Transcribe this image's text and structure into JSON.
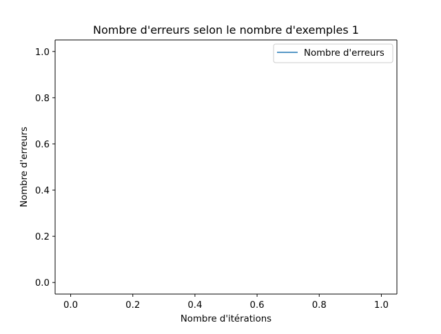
{
  "chart_data": {
    "type": "line",
    "title": "Nombre d'erreurs selon le nombre d'exemples 1",
    "xlabel": "Nombre d'itérations",
    "ylabel": "Nombre d'erreurs",
    "xlim": [
      -0.05,
      1.05
    ],
    "ylim": [
      -0.05,
      1.05
    ],
    "xticks": [
      0.0,
      0.2,
      0.4,
      0.6,
      0.8,
      1.0
    ],
    "xtick_labels": [
      "0.0",
      "0.2",
      "0.4",
      "0.6",
      "0.8",
      "1.0"
    ],
    "yticks": [
      0.0,
      0.2,
      0.4,
      0.6,
      0.8,
      1.0
    ],
    "ytick_labels": [
      "0.0",
      "0.2",
      "0.4",
      "0.6",
      "0.8",
      "1.0"
    ],
    "grid": false,
    "legend_position": "top-right",
    "series": [
      {
        "name": "Nombre d'erreurs",
        "x": [],
        "y": [],
        "color": "#1f77b4"
      }
    ]
  }
}
